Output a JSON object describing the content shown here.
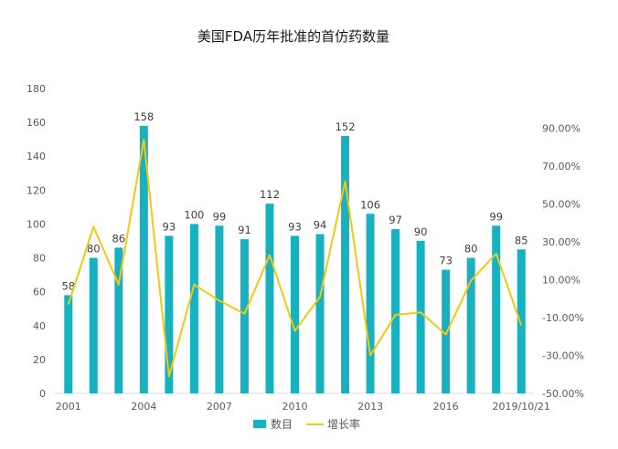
{
  "chart_data": {
    "type": "bar",
    "title": "美国FDA历年批准的首仿药数量",
    "categories": [
      "2001",
      "2002",
      "2003",
      "2004",
      "2005",
      "2006",
      "2007",
      "2008",
      "2009",
      "2010",
      "2011",
      "2012",
      "2013",
      "2014",
      "2015",
      "2016",
      "2017",
      "2018",
      "2019/10/21"
    ],
    "x_tick_labels": [
      "2001",
      "2004",
      "2007",
      "2010",
      "2013",
      "2016",
      "2019/10/21"
    ],
    "series": [
      {
        "name": "数目",
        "type": "bar",
        "axis": "left",
        "color": "#17B1C0",
        "values": [
          58,
          80,
          86,
          158,
          93,
          100,
          99,
          91,
          112,
          93,
          94,
          152,
          106,
          97,
          90,
          73,
          80,
          99,
          85
        ]
      },
      {
        "name": "增长率",
        "type": "line",
        "axis": "right",
        "color": "#F2C811",
        "values": [
          -0.03,
          0.38,
          0.075,
          0.84,
          -0.41,
          0.075,
          -0.01,
          -0.08,
          0.23,
          -0.17,
          0.01,
          0.62,
          -0.3,
          -0.085,
          -0.072,
          -0.189,
          0.096,
          0.238,
          -0.141
        ]
      }
    ],
    "y_left": {
      "min": 0,
      "max": 180,
      "ticks": [
        "0",
        "20",
        "40",
        "60",
        "80",
        "100",
        "120",
        "140",
        "160",
        "180"
      ]
    },
    "y_right": {
      "min": -0.5,
      "max": 1.0,
      "ticks": [
        "-50.00%",
        "-30.00%",
        "-10.00%",
        "10.00%",
        "30.00%",
        "50.00%",
        "70.00%",
        "90.00%"
      ]
    },
    "legend": {
      "placement": "bottom"
    },
    "grid": false
  }
}
